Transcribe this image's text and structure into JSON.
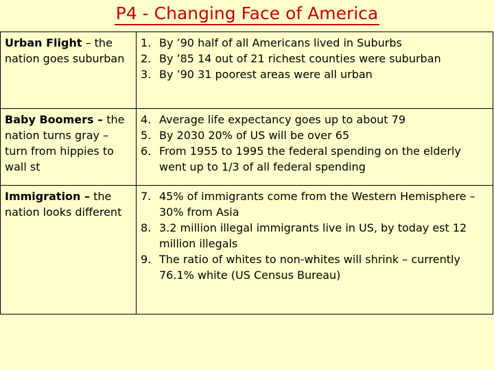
{
  "title": "P4 - Changing Face of America",
  "rows": [
    {
      "topic_bold": "Urban Flight",
      "topic_rest": " – the nation goes suburban",
      "points": [
        {
          "num": "1.",
          "text": "By ’90  half of all Americans lived in Suburbs"
        },
        {
          "num": "2.",
          "text": "By ’85 14 out of 21 richest counties were suburban"
        },
        {
          "num": "3.",
          "text": "By ’90 31 poorest areas were all urban"
        }
      ]
    },
    {
      "topic_bold": "Baby Boomers –",
      "topic_rest": " the nation turns gray – turn from hippies to wall st",
      "points": [
        {
          "num": "4.",
          "text": "Average life expectancy goes up to about 79"
        },
        {
          "num": "5.",
          "text": "By 2030 20% of US will be over 65"
        },
        {
          "num": "6.",
          "text": "From 1955 to 1995 the federal spending on the elderly went up to 1/3 of all federal spending"
        }
      ]
    },
    {
      "topic_bold": "Immigration –",
      "topic_rest": " the nation looks different",
      "points": [
        {
          "num": "7.",
          "text": "45% of immigrants come from the Western Hemisphere – 30% from Asia"
        },
        {
          "num": "8.",
          "text": "3.2  million illegal immigrants live in US, by today est 12 million illegals"
        },
        {
          "num": "9.",
          "text": "The ratio of whites to non-whites will shrink – currently 76.1% white  (US Census Bureau)"
        }
      ]
    }
  ]
}
